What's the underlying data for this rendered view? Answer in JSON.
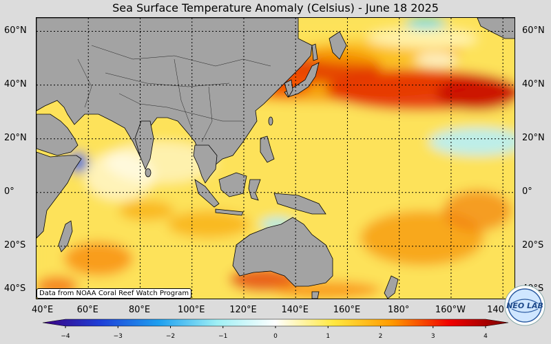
{
  "title": "Sea Surface Temperature Anomaly (Celsius) - June 18 2025",
  "credit": "Data from NOAA Coral Reef Watch Program",
  "map": {
    "lon_range": [
      40,
      225
    ],
    "lat_range": [
      -40,
      65
    ],
    "lat_labels": [
      "60°N",
      "40°N",
      "20°N",
      "0°",
      "20°S",
      "40°S"
    ],
    "lat_values": [
      60,
      40,
      20,
      0,
      -20,
      -40
    ],
    "lon_labels": [
      "40°E",
      "60°E",
      "80°E",
      "100°E",
      "120°E",
      "140°E",
      "160°E",
      "180°",
      "160°W",
      "140°W"
    ],
    "lon_values": [
      40,
      60,
      80,
      100,
      120,
      140,
      160,
      180,
      200,
      220
    ],
    "grid": "dotted",
    "land_color": "#a0a0a0",
    "ocean_base_color": "#fbe25a"
  },
  "colorbar": {
    "min": -4,
    "max": 4,
    "tick_labels": [
      "−4",
      "−3",
      "−2",
      "−1",
      "0",
      "1",
      "2",
      "3",
      "4"
    ],
    "tick_values": [
      -4,
      -3,
      -2,
      -1,
      0,
      1,
      2,
      3,
      4
    ],
    "colors": [
      "#3b0080",
      "#1e40d8",
      "#1ea0f0",
      "#9ff0f5",
      "#ffffff",
      "#ffe840",
      "#ff9a00",
      "#f00000",
      "#7a0000"
    ]
  },
  "logo": {
    "text": "NEO LAB",
    "icon": "globe-logo-icon"
  }
}
